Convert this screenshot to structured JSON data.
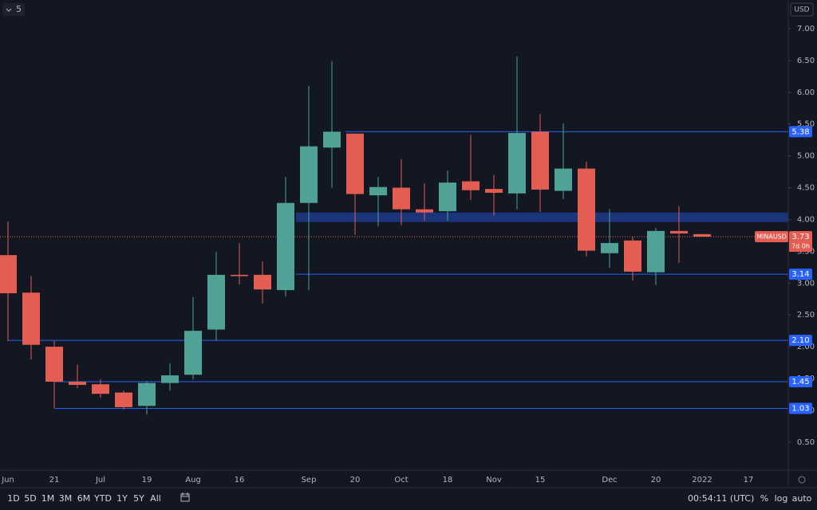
{
  "toolbar": {
    "interval": "5",
    "currency": "USD",
    "ranges": [
      "1D",
      "5D",
      "1M",
      "3M",
      "6M",
      "YTD",
      "1Y",
      "5Y",
      "All"
    ],
    "clock": "00:54:11 (UTC)",
    "options": [
      "%",
      "log",
      "auto"
    ]
  },
  "chart_data": {
    "type": "candlestick",
    "symbol": "MINAUSD",
    "categories": [
      "Jun",
      null,
      "21",
      null,
      "Jul",
      null,
      "19",
      null,
      "Aug",
      null,
      "16",
      null,
      null,
      "Sep",
      null,
      "20",
      null,
      "Oct",
      null,
      "18",
      null,
      "Nov",
      null,
      "15",
      null,
      null,
      "Dec",
      null,
      "20",
      null,
      "2022",
      null,
      "17",
      null
    ],
    "open": [
      3.44,
      2.85,
      2.0,
      1.45,
      1.41,
      1.28,
      1.07,
      1.43,
      1.56,
      2.27,
      3.13,
      3.13,
      2.89,
      4.26,
      5.13,
      5.35,
      4.38,
      4.5,
      4.16,
      4.13,
      4.6,
      4.48,
      4.41,
      5.38,
      4.45,
      4.8,
      3.47,
      3.67,
      3.17,
      3.82,
      3.77,
      null,
      null,
      null
    ],
    "high": [
      3.97,
      3.11,
      2.09,
      1.72,
      1.49,
      1.31,
      1.46,
      1.74,
      2.78,
      3.49,
      3.63,
      3.34,
      4.67,
      6.1,
      6.49,
      5.35,
      4.67,
      4.95,
      4.57,
      4.77,
      5.33,
      4.7,
      6.56,
      5.66,
      5.51,
      4.91,
      4.16,
      3.73,
      3.87,
      4.21,
      3.77,
      null,
      null,
      null
    ],
    "low": [
      2.09,
      1.8,
      1.03,
      1.35,
      1.2,
      1.01,
      0.93,
      1.31,
      1.49,
      2.1,
      2.98,
      2.68,
      2.79,
      2.89,
      4.5,
      3.76,
      3.89,
      3.91,
      3.98,
      3.98,
      4.31,
      4.06,
      4.16,
      4.12,
      4.32,
      3.42,
      3.24,
      3.04,
      2.97,
      3.32,
      3.73,
      null,
      null,
      null
    ],
    "close": [
      2.84,
      2.03,
      1.45,
      1.4,
      1.26,
      1.05,
      1.43,
      1.55,
      2.25,
      3.13,
      3.11,
      2.9,
      4.26,
      5.15,
      5.38,
      4.4,
      4.51,
      4.16,
      4.11,
      4.58,
      4.46,
      4.42,
      5.36,
      4.47,
      4.8,
      3.51,
      3.63,
      3.18,
      3.82,
      3.78,
      3.73,
      null,
      null,
      null
    ],
    "up_color": "#4fa295",
    "down_color": "#e35d52",
    "ylim": [
      0.06,
      7.45
    ],
    "yticks": [
      {
        "value": 0.5,
        "label": "0.50"
      },
      {
        "value": 1,
        "label": "1.00"
      },
      {
        "value": 1.5,
        "label": "1.50"
      },
      {
        "value": 2,
        "label": "2.00"
      },
      {
        "value": 2.5,
        "label": "2.50"
      },
      {
        "value": 3,
        "label": "3.00"
      },
      {
        "value": 3.5,
        "label": "3.50"
      },
      {
        "value": 4,
        "label": "4.00"
      },
      {
        "value": 4.5,
        "label": "4.50"
      },
      {
        "value": 5,
        "label": "5.00"
      },
      {
        "value": 5.5,
        "label": "5.50"
      },
      {
        "value": 6,
        "label": "6.00"
      },
      {
        "value": 6.5,
        "label": "6.50"
      },
      {
        "value": 7,
        "label": "7.00"
      }
    ],
    "grid": false,
    "price_lines": [
      {
        "value": 5.38,
        "label": "5.38"
      },
      {
        "value": 3.14,
        "label": "3.14"
      },
      {
        "value": 2.1,
        "label": "2.10"
      },
      {
        "value": 1.45,
        "label": "1.45"
      },
      {
        "value": 1.03,
        "label": "1.03"
      }
    ],
    "line_color": "#2962ff",
    "zone": [
      3.96,
      4.11
    ],
    "zone_color": "#1e3a8a",
    "last_price": {
      "value": 3.73,
      "label": "3.73",
      "countdown": "7d 0h"
    }
  }
}
